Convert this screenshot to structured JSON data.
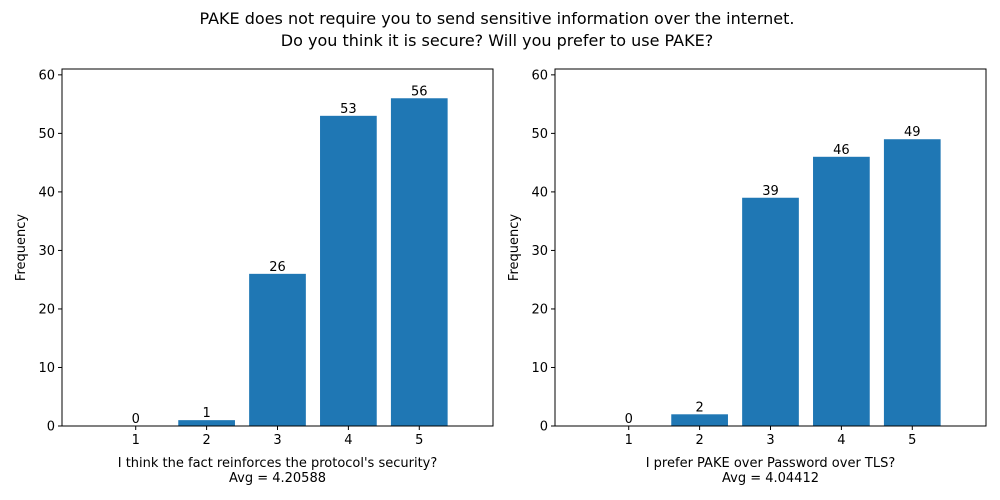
{
  "figure": {
    "suptitle_line1": "PAKE does not require you to send sensitive information over the internet.",
    "suptitle_line2": "Do you think it is secure? Will you prefer to use PAKE?"
  },
  "chart_data": [
    {
      "type": "bar",
      "categories": [
        "1",
        "2",
        "3",
        "4",
        "5"
      ],
      "x": [
        1,
        2,
        3,
        4,
        5
      ],
      "values": [
        0,
        1,
        26,
        53,
        56
      ],
      "data_labels": [
        "0",
        "1",
        "26",
        "53",
        "56"
      ],
      "xlabel": "I think the fact reinforces the protocol's security?",
      "xlabel_line2": "Avg = 4.20588",
      "ylabel": "Frequency",
      "xlim": [
        -0.04,
        6.04
      ],
      "ylim": [
        0,
        61
      ],
      "yticks": [
        0,
        10,
        20,
        30,
        40,
        50,
        60
      ],
      "bar_color": "#1f77b4",
      "grid": false,
      "legend": "none"
    },
    {
      "type": "bar",
      "categories": [
        "1",
        "2",
        "3",
        "4",
        "5"
      ],
      "x": [
        1,
        2,
        3,
        4,
        5
      ],
      "values": [
        0,
        2,
        39,
        46,
        49
      ],
      "data_labels": [
        "0",
        "2",
        "39",
        "46",
        "49"
      ],
      "xlabel": "I prefer PAKE over Password over TLS?",
      "xlabel_line2": "Avg = 4.04412",
      "ylabel": "Frequency",
      "xlim": [
        -0.04,
        6.04
      ],
      "ylim": [
        0,
        61
      ],
      "yticks": [
        0,
        10,
        20,
        30,
        40,
        50,
        60
      ],
      "bar_color": "#1f77b4",
      "grid": false,
      "legend": "none"
    }
  ]
}
